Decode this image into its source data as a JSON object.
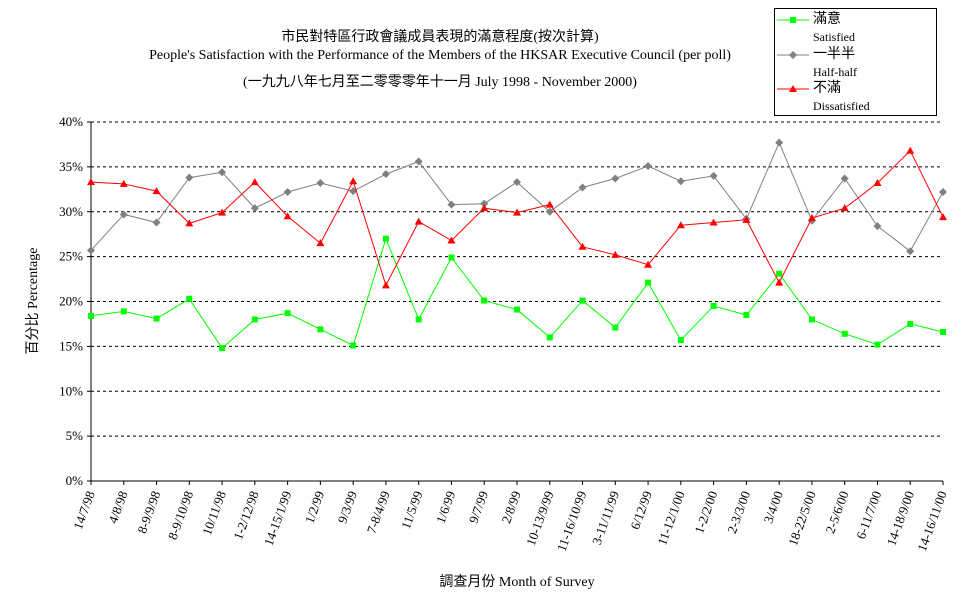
{
  "chart_data": {
    "type": "line",
    "title": "市民對特區行政會議成員表現的滿意程度(按次計算)",
    "subtitle": "People's Satisfaction with the Performance of the Members of the HKSAR Executive Council (per poll)",
    "subtitle2": "(一九九八年七月至二零零零年十一月 July 1998 -  November 2000)",
    "xlabel": "調查月份 Month of Survey",
    "ylabel": "百分比 Percentage",
    "ylim": [
      0,
      40
    ],
    "yticks": [
      "0%",
      "5%",
      "10%",
      "15%",
      "20%",
      "25%",
      "30%",
      "35%",
      "40%"
    ],
    "grid": true,
    "legend_position": "top-right",
    "categories": [
      "14/7/98",
      "4/8/98",
      "8-9/9/98",
      "8-9/10/98",
      "10/11/98",
      "1-2/12/98",
      "14-15/1/99",
      "1/2/99",
      "9/3/99",
      "7-8/4/99",
      "11/5/99",
      "1/6/99",
      "9/7/99",
      "2/8/99",
      "10-13/9/99",
      "11-16/10/99",
      "3-11/11/99",
      "6/12/99",
      "11-12/1/00",
      "1-2/2/00",
      "2-3/3/00",
      "3/4/00",
      "18-22/5/00",
      "2-5/6/00",
      "6-11/7/00",
      "14-18/9/00",
      "14-16/11/00"
    ],
    "series": [
      {
        "name": "滿意",
        "name_en": "Satisfied",
        "color": "#00ff00",
        "marker": "square",
        "values": [
          18.4,
          18.9,
          18.1,
          20.3,
          14.8,
          18.0,
          18.7,
          16.9,
          15.1,
          27.0,
          18.0,
          24.9,
          20.1,
          19.1,
          16.0,
          20.1,
          17.1,
          22.1,
          15.7,
          19.5,
          18.5,
          23.1,
          18.0,
          16.4,
          15.2,
          17.5,
          16.6
        ]
      },
      {
        "name": "一半半",
        "name_en": "Half-half",
        "color": "#808080",
        "marker": "diamond",
        "values": [
          25.7,
          29.7,
          28.8,
          33.8,
          34.4,
          30.4,
          32.2,
          33.2,
          32.3,
          34.2,
          35.6,
          30.8,
          30.9,
          33.3,
          30.0,
          32.7,
          33.7,
          35.1,
          33.4,
          34.0,
          29.2,
          37.7,
          29.0,
          33.7,
          28.4,
          25.6,
          32.2
        ]
      },
      {
        "name": "不滿",
        "name_en": "Dissatisfied",
        "color": "#ff0000",
        "marker": "triangle",
        "values": [
          33.3,
          33.1,
          32.3,
          28.7,
          29.9,
          33.3,
          29.5,
          26.5,
          33.4,
          21.8,
          28.9,
          26.8,
          30.4,
          29.9,
          30.8,
          26.1,
          25.2,
          24.1,
          28.5,
          28.8,
          29.1,
          22.1,
          29.3,
          30.4,
          33.2,
          36.8,
          29.4
        ]
      }
    ]
  }
}
